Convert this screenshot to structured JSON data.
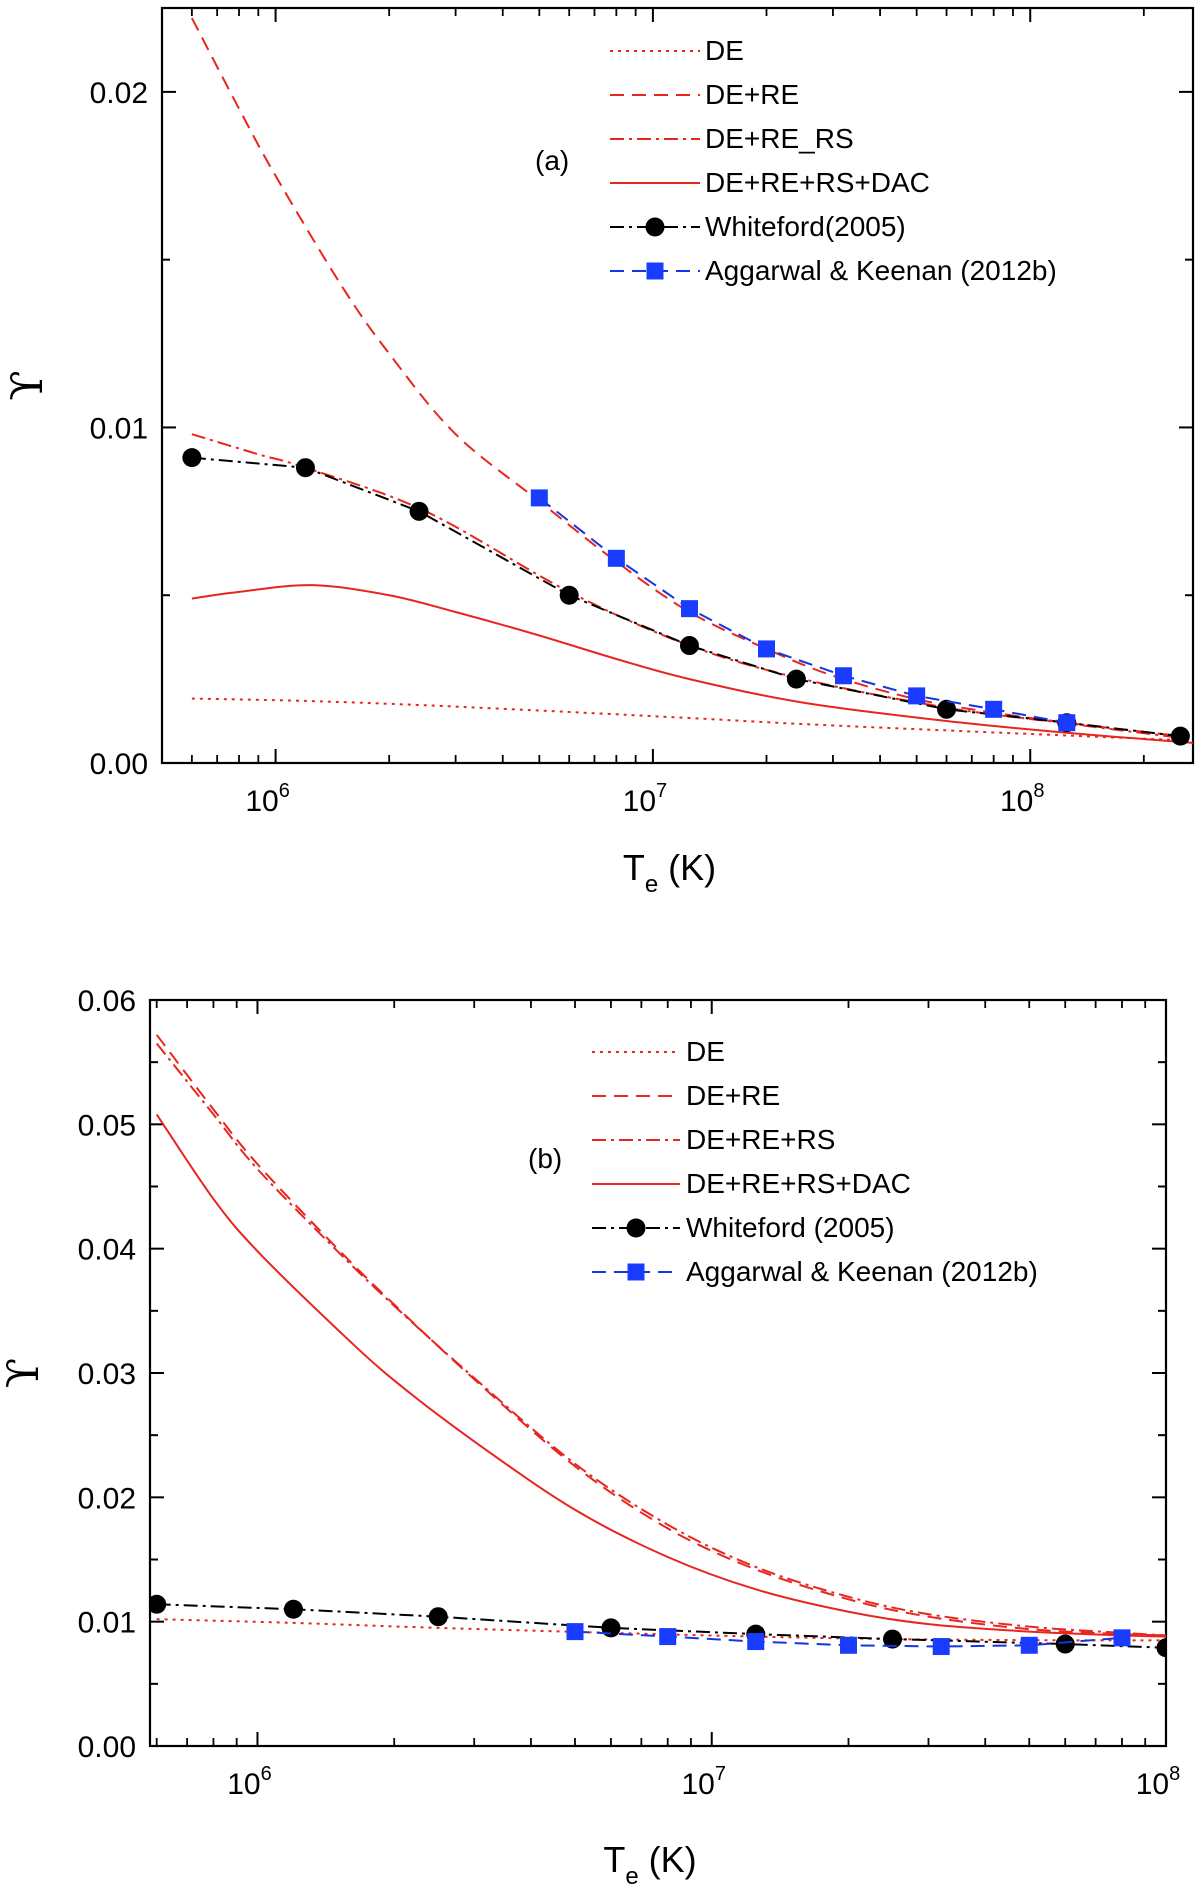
{
  "colors": {
    "red": "#e8251f",
    "black": "#000000",
    "blue": "#1436e0",
    "marker_blue": "#1a3cff"
  },
  "chart_data": [
    {
      "type": "line",
      "panel_label": "(a)",
      "xscale": "log",
      "xlim": [
        500000,
        270000000
      ],
      "ylim": [
        0,
        0.0225
      ],
      "ylabel": "ϒ",
      "xlabel": {
        "main": "T",
        "sub": "e",
        "unit": " (K)"
      },
      "yticks": [
        {
          "value": 0,
          "label": "0.00"
        },
        {
          "value": 0.01,
          "label": "0.01"
        },
        {
          "value": 0.02,
          "label": "0.02"
        }
      ],
      "yminor": [
        0.005,
        0.015
      ],
      "xticks": [
        {
          "value": 1000000,
          "base": "10",
          "exp": "6"
        },
        {
          "value": 10000000,
          "base": "10",
          "exp": "7"
        },
        {
          "value": 100000000,
          "base": "10",
          "exp": "8"
        }
      ],
      "legend_position": "top-right",
      "series": [
        {
          "name": "DE",
          "style": "dotted",
          "color": "#e8251f",
          "marker": "none",
          "x": [
            600000,
            1200000,
            2500000,
            6000000,
            12500000,
            25000000,
            60000000,
            125000000,
            250000000
          ],
          "y": [
            0.00192,
            0.00185,
            0.00172,
            0.00152,
            0.00134,
            0.00116,
            0.00097,
            0.00082,
            0.00068
          ]
        },
        {
          "name": "DE+RE",
          "style": "dashed",
          "color": "#e8251f",
          "marker": "none",
          "x": [
            600000,
            800000,
            1000000,
            1500000,
            2000000,
            3000000,
            5000000,
            8000000,
            12500000,
            20000000,
            30000000,
            50000000,
            80000000,
            125000000,
            250000000
          ],
          "y": [
            0.0222,
            0.0195,
            0.0175,
            0.0142,
            0.0122,
            0.0098,
            0.0078,
            0.006,
            0.0045,
            0.0034,
            0.0026,
            0.0019,
            0.0015,
            0.0012,
            0.0008
          ]
        },
        {
          "name": "DE+RE_RS",
          "style": "dashdot",
          "color": "#e8251f",
          "marker": "none",
          "x": [
            600000,
            900000,
            1200000,
            2500000,
            6000000,
            12500000,
            25000000,
            60000000,
            125000000,
            250000000
          ],
          "y": [
            0.0098,
            0.0092,
            0.0088,
            0.0075,
            0.0051,
            0.0035,
            0.0025,
            0.00165,
            0.00118,
            0.00075
          ]
        },
        {
          "name": "DE+RE+RS+DAC",
          "style": "solid",
          "color": "#e8251f",
          "marker": "none",
          "x": [
            600000,
            800000,
            1250000,
            2000000,
            3000000,
            5000000,
            8000000,
            12500000,
            25000000,
            60000000,
            125000000,
            270000000
          ],
          "y": [
            0.0049,
            0.0051,
            0.0053,
            0.005,
            0.0045,
            0.0038,
            0.0031,
            0.0025,
            0.0018,
            0.00125,
            0.0009,
            0.0006
          ]
        },
        {
          "name": "Whiteford(2005)",
          "style": "dashdot",
          "color": "#000000",
          "marker": "circle",
          "x": [
            600000,
            1200000,
            2400000,
            6000000,
            12500000,
            24000000,
            60000000,
            125000000,
            250000000
          ],
          "y": [
            0.0091,
            0.0088,
            0.0075,
            0.005,
            0.0035,
            0.0025,
            0.0016,
            0.0012,
            0.0008
          ]
        },
        {
          "name": "Aggarwal & Keenan (2012b)",
          "style": "dashed",
          "color": "#1436e0",
          "marker": "square",
          "x": [
            5000000,
            8000000,
            12500000,
            20000000,
            32000000,
            50000000,
            80000000,
            125000000
          ],
          "y": [
            0.0079,
            0.0061,
            0.0046,
            0.0034,
            0.0026,
            0.002,
            0.0016,
            0.0012
          ]
        }
      ]
    },
    {
      "type": "line",
      "panel_label": "(b)",
      "xscale": "log",
      "xlim": [
        580000,
        100000000
      ],
      "ylim": [
        0,
        0.06
      ],
      "ylabel": "ϒ",
      "xlabel": {
        "main": "T",
        "sub": "e",
        "unit": " (K)"
      },
      "yticks": [
        {
          "value": 0,
          "label": "0.00"
        },
        {
          "value": 0.01,
          "label": "0.01"
        },
        {
          "value": 0.02,
          "label": "0.02"
        },
        {
          "value": 0.03,
          "label": "0.03"
        },
        {
          "value": 0.04,
          "label": "0.04"
        },
        {
          "value": 0.05,
          "label": "0.05"
        },
        {
          "value": 0.06,
          "label": "0.06"
        }
      ],
      "yminor": [
        0.005,
        0.015,
        0.025,
        0.035,
        0.045,
        0.055
      ],
      "xticks": [
        {
          "value": 1000000,
          "base": "10",
          "exp": "6"
        },
        {
          "value": 10000000,
          "base": "10",
          "exp": "7"
        },
        {
          "value": 100000000,
          "base": "10",
          "exp": "8"
        }
      ],
      "legend_position": "top-right",
      "series": [
        {
          "name": "DE",
          "style": "dotted",
          "color": "#e8251f",
          "marker": "none",
          "x": [
            600000,
            1200000,
            2500000,
            6000000,
            12500000,
            25000000,
            60000000,
            100000000
          ],
          "y": [
            0.0102,
            0.0099,
            0.0095,
            0.0091,
            0.0088,
            0.0086,
            0.0085,
            0.0085
          ]
        },
        {
          "name": "DE+RE",
          "style": "dashed",
          "color": "#e8251f",
          "marker": "none",
          "x": [
            600000,
            800000,
            1000000,
            1500000,
            2000000,
            3000000,
            5000000,
            8000000,
            12500000,
            20000000,
            30000000,
            50000000,
            80000000,
            100000000
          ],
          "y": [
            0.0572,
            0.0512,
            0.0468,
            0.04,
            0.0355,
            0.0295,
            0.0225,
            0.0175,
            0.0142,
            0.0118,
            0.0104,
            0.0094,
            0.009,
            0.0089
          ]
        },
        {
          "name": "DE+RE+RS",
          "style": "dashdot",
          "color": "#e8251f",
          "marker": "none",
          "x": [
            600000,
            800000,
            1000000,
            1500000,
            2000000,
            3000000,
            5000000,
            8000000,
            12500000,
            20000000,
            30000000,
            50000000,
            80000000,
            100000000
          ],
          "y": [
            0.0565,
            0.0508,
            0.0464,
            0.0398,
            0.0354,
            0.0296,
            0.0227,
            0.0178,
            0.0144,
            0.012,
            0.0106,
            0.0096,
            0.0091,
            0.0089
          ]
        },
        {
          "name": "DE+RE+RS+DAC",
          "style": "solid",
          "color": "#e8251f",
          "marker": "none",
          "x": [
            600000,
            800000,
            1000000,
            1500000,
            2000000,
            3000000,
            5000000,
            8000000,
            12500000,
            20000000,
            30000000,
            50000000,
            80000000,
            100000000
          ],
          "y": [
            0.0508,
            0.044,
            0.0398,
            0.0335,
            0.0294,
            0.0245,
            0.019,
            0.0152,
            0.0126,
            0.0108,
            0.0098,
            0.0092,
            0.0089,
            0.0088
          ]
        },
        {
          "name": "Whiteford (2005)",
          "style": "dashdot",
          "color": "#000000",
          "marker": "circle",
          "x": [
            600000,
            1200000,
            2500000,
            6000000,
            12500000,
            25000000,
            60000000,
            100000000
          ],
          "y": [
            0.0114,
            0.011,
            0.0104,
            0.0095,
            0.009,
            0.0086,
            0.0082,
            0.0079
          ]
        },
        {
          "name": "Aggarwal & Keenan (2012b)",
          "style": "dashed",
          "color": "#1436e0",
          "marker": "square",
          "x": [
            5000000,
            8000000,
            12500000,
            20000000,
            32000000,
            50000000,
            80000000
          ],
          "y": [
            0.0092,
            0.0088,
            0.0084,
            0.0081,
            0.008,
            0.0081,
            0.0087
          ]
        }
      ]
    }
  ]
}
